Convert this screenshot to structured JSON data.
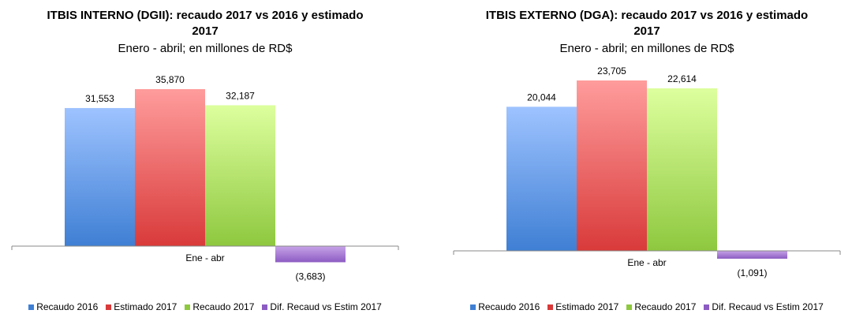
{
  "chart_data": [
    {
      "type": "bar",
      "title_line1": "ITBIS INTERNO (DGII): recaudo 2017 vs 2016 y estimado",
      "title_line2": "2017",
      "subtitle": "Enero - abril; en millones de RD$",
      "categories": [
        "Ene - abr"
      ],
      "series": [
        {
          "name": "Recaudo 2016",
          "values": [
            31553
          ],
          "label": "31,553",
          "color_top": "#9ec3ff",
          "color_bottom": "#3f7fd4"
        },
        {
          "name": "Estimado 2017",
          "values": [
            35870
          ],
          "label": "35,870",
          "color_top": "#ff9c9c",
          "color_bottom": "#d93a3a"
        },
        {
          "name": "Recaudo 2017",
          "values": [
            32187
          ],
          "label": "32,187",
          "color_top": "#ddff9e",
          "color_bottom": "#8ec83f"
        },
        {
          "name": "Dif. Recaud vs Estim 2017",
          "values": [
            -3683
          ],
          "label": "(3,683)",
          "color_top": "#c7a3e8",
          "color_bottom": "#8c5cc2"
        }
      ],
      "legend": "bottom",
      "grid": false
    },
    {
      "type": "bar",
      "title_line1": "ITBIS EXTERNO (DGA): recaudo 2017 vs 2016 y estimado",
      "title_line2": "2017",
      "subtitle": "Enero - abril; en millones de RD$",
      "categories": [
        "Ene - abr"
      ],
      "series": [
        {
          "name": "Recaudo 2016",
          "values": [
            20044
          ],
          "label": "20,044",
          "color_top": "#9ec3ff",
          "color_bottom": "#3f7fd4"
        },
        {
          "name": "Estimado 2017",
          "values": [
            23705
          ],
          "label": "23,705",
          "color_top": "#ff9c9c",
          "color_bottom": "#d93a3a"
        },
        {
          "name": "Recaudo 2017",
          "values": [
            22614
          ],
          "label": "22,614",
          "color_top": "#ddff9e",
          "color_bottom": "#8ec83f"
        },
        {
          "name": "Dif. Recaud vs Estim 2017",
          "values": [
            -1091
          ],
          "label": "(1,091)",
          "color_top": "#c7a3e8",
          "color_bottom": "#8c5cc2"
        }
      ],
      "legend": "bottom",
      "grid": false
    }
  ]
}
